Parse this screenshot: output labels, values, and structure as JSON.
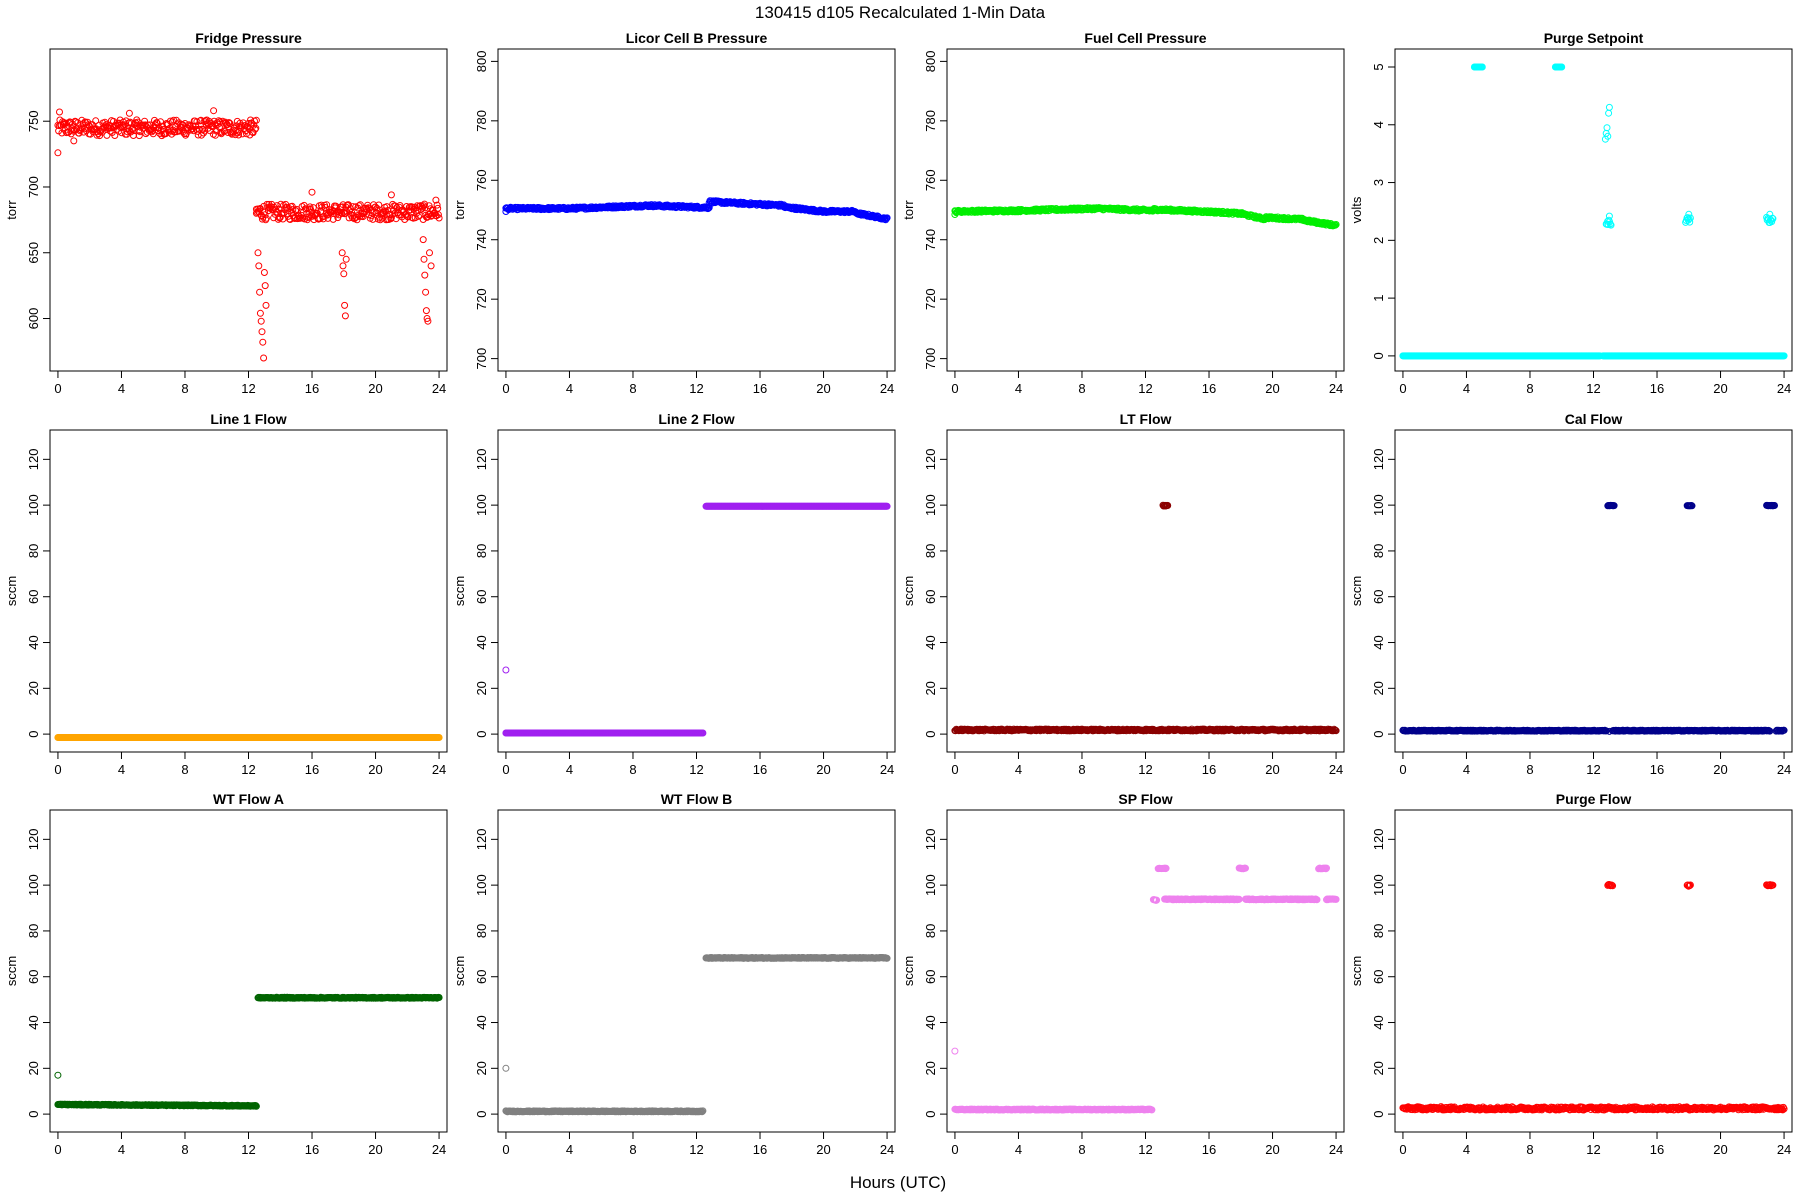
{
  "figure": {
    "title": "130415   d105   Recalculated 1-Min Data",
    "xlabel": "Hours (UTC)"
  },
  "chart_data": [
    {
      "type": "scatter",
      "title": "Fridge Pressure",
      "ylabel": "torr",
      "color": "#ff0000",
      "xlim": [
        0,
        24
      ],
      "ylim": [
        565,
        800
      ],
      "xticks": [
        0,
        4,
        8,
        12,
        16,
        20,
        24
      ],
      "yticks": [
        600,
        650,
        700,
        750
      ],
      "segments": [
        {
          "x": [
            0,
            12.5
          ],
          "y": 745,
          "jitter": 6
        },
        {
          "x": [
            12.5,
            24
          ],
          "y": 681,
          "jitter": 6
        }
      ],
      "points": [
        [
          0.0,
          726
        ],
        [
          0.1,
          757
        ],
        [
          1.0,
          735
        ],
        [
          4.5,
          756
        ],
        [
          9.8,
          758
        ],
        [
          12.5,
          680
        ],
        [
          12.6,
          650
        ],
        [
          12.65,
          640
        ],
        [
          12.7,
          620
        ],
        [
          12.75,
          604
        ],
        [
          12.8,
          598
        ],
        [
          12.85,
          590
        ],
        [
          12.9,
          582
        ],
        [
          12.95,
          570
        ],
        [
          13.0,
          635
        ],
        [
          13.05,
          625
        ],
        [
          13.1,
          610
        ],
        [
          16.0,
          696
        ],
        [
          17.9,
          650
        ],
        [
          17.95,
          640
        ],
        [
          18.0,
          634
        ],
        [
          18.05,
          610
        ],
        [
          18.1,
          602
        ],
        [
          18.15,
          645
        ],
        [
          21.0,
          694
        ],
        [
          23.0,
          660
        ],
        [
          23.05,
          645
        ],
        [
          23.1,
          633
        ],
        [
          23.15,
          620
        ],
        [
          23.2,
          606
        ],
        [
          23.25,
          600
        ],
        [
          23.3,
          598
        ],
        [
          23.4,
          650
        ],
        [
          23.5,
          640
        ],
        [
          23.8,
          690
        ]
      ]
    },
    {
      "type": "scatter",
      "title": "Licor Cell B Pressure",
      "ylabel": "torr",
      "color": "#0000ff",
      "xlim": [
        0,
        24
      ],
      "ylim": [
        698,
        802
      ],
      "xticks": [
        0,
        4,
        8,
        12,
        16,
        20,
        24
      ],
      "yticks": [
        700,
        720,
        740,
        760,
        780,
        800
      ],
      "segments": [
        {
          "x": [
            0,
            4
          ],
          "y": [
            750.5,
            750.5
          ],
          "jitter": 0.4
        },
        {
          "x": [
            4,
            9
          ],
          "y": [
            750.5,
            751.5
          ],
          "jitter": 0.4
        },
        {
          "x": [
            9,
            12.8
          ],
          "y": [
            751.5,
            750.8
          ],
          "jitter": 0.4
        },
        {
          "x": [
            12.8,
            17.5
          ],
          "y": [
            752.8,
            751.5
          ],
          "jitter": 0.4
        },
        {
          "x": [
            17.5,
            20
          ],
          "y": [
            751,
            749.5
          ],
          "jitter": 0.4
        },
        {
          "x": [
            20,
            22
          ],
          "y": [
            749.5,
            749.5
          ],
          "jitter": 0.4
        },
        {
          "x": [
            22,
            24
          ],
          "y": [
            749,
            747
          ],
          "jitter": 0.4
        }
      ],
      "points": [
        [
          0.0,
          749.5
        ]
      ]
    },
    {
      "type": "scatter",
      "title": "Fuel Cell Pressure",
      "ylabel": "torr",
      "color": "#00ee00",
      "xlim": [
        0,
        24
      ],
      "ylim": [
        698,
        802
      ],
      "xticks": [
        0,
        4,
        8,
        12,
        16,
        20,
        24
      ],
      "yticks": [
        700,
        720,
        740,
        760,
        780,
        800
      ],
      "segments": [
        {
          "x": [
            0,
            4
          ],
          "y": [
            749.5,
            749.8
          ],
          "jitter": 0.4
        },
        {
          "x": [
            4,
            9
          ],
          "y": [
            749.8,
            750.5
          ],
          "jitter": 0.4
        },
        {
          "x": [
            9,
            12.5
          ],
          "y": [
            750.5,
            749.8
          ],
          "jitter": 0.4
        },
        {
          "x": [
            12.5,
            16.5
          ],
          "y": [
            750.2,
            749.3
          ],
          "jitter": 0.4
        },
        {
          "x": [
            16.5,
            18.2
          ],
          "y": [
            749.3,
            748.7
          ],
          "jitter": 0.4
        },
        {
          "x": [
            18.2,
            19.5
          ],
          "y": [
            748.5,
            747
          ],
          "jitter": 0.4
        },
        {
          "x": [
            19.5,
            22
          ],
          "y": [
            747.5,
            746.8
          ],
          "jitter": 0.4
        },
        {
          "x": [
            22,
            24
          ],
          "y": [
            746.5,
            744.8
          ],
          "jitter": 0.4
        }
      ],
      "points": [
        [
          0.0,
          748.5
        ]
      ]
    },
    {
      "type": "scatter",
      "title": "Purge Setpoint",
      "ylabel": "volts",
      "color": "#00ffff",
      "xlim": [
        0,
        24
      ],
      "ylim": [
        -0.15,
        5.2
      ],
      "xticks": [
        0,
        4,
        8,
        12,
        16,
        20,
        24
      ],
      "yticks": [
        0,
        1,
        2,
        3,
        4,
        5
      ],
      "segments": [
        {
          "x": [
            0,
            12.4
          ],
          "y": 0,
          "jitter": 0
        },
        {
          "x": [
            12.6,
            24
          ],
          "y": 0,
          "jitter": 0
        },
        {
          "x": [
            4.5,
            5.0
          ],
          "y": 5,
          "jitter": 0
        },
        {
          "x": [
            9.6,
            10.0
          ],
          "y": 5,
          "jitter": 0
        },
        {
          "x": [
            12.8,
            13.1
          ],
          "y": 2.3,
          "jitter": 0.05
        },
        {
          "x": [
            17.8,
            18.1
          ],
          "y": 2.35,
          "jitter": 0.05
        },
        {
          "x": [
            22.9,
            23.3
          ],
          "y": 2.35,
          "jitter": 0.05
        }
      ],
      "points": [
        [
          12.75,
          3.75
        ],
        [
          12.8,
          3.85
        ],
        [
          12.85,
          3.95
        ],
        [
          12.95,
          4.2
        ],
        [
          13.0,
          4.3
        ],
        [
          12.9,
          3.8
        ],
        [
          13.0,
          2.42
        ],
        [
          18.0,
          2.45
        ],
        [
          23.1,
          2.45
        ]
      ]
    },
    {
      "type": "scatter",
      "title": "Line 1 Flow",
      "ylabel": "sccm",
      "color": "#ffa500",
      "xlim": [
        0,
        24
      ],
      "ylim": [
        -5,
        130
      ],
      "xticks": [
        0,
        4,
        8,
        12,
        16,
        20,
        24
      ],
      "yticks": [
        0,
        20,
        40,
        60,
        80,
        100,
        120
      ],
      "segments": [
        {
          "x": [
            0,
            24
          ],
          "y": -1.5,
          "jitter": 0
        }
      ],
      "points": []
    },
    {
      "type": "scatter",
      "title": "Line 2 Flow",
      "ylabel": "sccm",
      "color": "#a020f0",
      "xlim": [
        0,
        24
      ],
      "ylim": [
        -5,
        130
      ],
      "xticks": [
        0,
        4,
        8,
        12,
        16,
        20,
        24
      ],
      "yticks": [
        0,
        20,
        40,
        60,
        80,
        100,
        120
      ],
      "segments": [
        {
          "x": [
            0,
            12.4
          ],
          "y": 0.5,
          "jitter": 0
        },
        {
          "x": [
            12.6,
            24
          ],
          "y": 99.5,
          "jitter": 0
        }
      ],
      "points": [
        [
          0.0,
          28
        ]
      ]
    },
    {
      "type": "scatter",
      "title": "LT Flow",
      "ylabel": "sccm",
      "color": "#8b0000",
      "xlim": [
        0,
        24
      ],
      "ylim": [
        -5,
        130
      ],
      "xticks": [
        0,
        4,
        8,
        12,
        16,
        20,
        24
      ],
      "yticks": [
        0,
        20,
        40,
        60,
        80,
        100,
        120
      ],
      "segments": [
        {
          "x": [
            0,
            24
          ],
          "y": 1.8,
          "jitter": 0.4
        },
        {
          "x": [
            13.1,
            13.4
          ],
          "y": 99.8,
          "jitter": 0.2
        }
      ],
      "points": []
    },
    {
      "type": "scatter",
      "title": "Cal Flow",
      "ylabel": "sccm",
      "color": "#00008b",
      "xlim": [
        0,
        24
      ],
      "ylim": [
        -5,
        130
      ],
      "xticks": [
        0,
        4,
        8,
        12,
        16,
        20,
        24
      ],
      "yticks": [
        0,
        20,
        40,
        60,
        80,
        100,
        120
      ],
      "segments": [
        {
          "x": [
            0,
            12.8
          ],
          "y": 1.5,
          "jitter": 0.2
        },
        {
          "x": [
            13.2,
            23.1
          ],
          "y": 1.5,
          "jitter": 0.2
        },
        {
          "x": [
            23.5,
            24
          ],
          "y": 1.5,
          "jitter": 0.2
        },
        {
          "x": [
            12.9,
            13.3
          ],
          "y": 99.8,
          "jitter": 0.1
        },
        {
          "x": [
            17.9,
            18.2
          ],
          "y": 99.8,
          "jitter": 0.1
        },
        {
          "x": [
            22.9,
            23.4
          ],
          "y": 99.8,
          "jitter": 0.1
        }
      ],
      "points": [
        [
          13.0,
          1.2
        ]
      ]
    },
    {
      "type": "scatter",
      "title": "WT Flow A",
      "ylabel": "sccm",
      "color": "#006400",
      "xlim": [
        0,
        24
      ],
      "ylim": [
        -5,
        130
      ],
      "xticks": [
        0,
        4,
        8,
        12,
        16,
        20,
        24
      ],
      "yticks": [
        0,
        20,
        40,
        60,
        80,
        100,
        120
      ],
      "segments": [
        {
          "x": [
            0,
            12.5
          ],
          "y": [
            4.2,
            3.6
          ],
          "jitter": 0.2
        },
        {
          "x": [
            12.6,
            24
          ],
          "y": 50.8,
          "jitter": 0.2
        }
      ],
      "points": [
        [
          0.0,
          17
        ]
      ]
    },
    {
      "type": "scatter",
      "title": "WT Flow B",
      "ylabel": "sccm",
      "color": "#808080",
      "xlim": [
        0,
        24
      ],
      "ylim": [
        -5,
        130
      ],
      "xticks": [
        0,
        4,
        8,
        12,
        16,
        20,
        24
      ],
      "yticks": [
        0,
        20,
        40,
        60,
        80,
        100,
        120
      ],
      "segments": [
        {
          "x": [
            0,
            12.4
          ],
          "y": 1.2,
          "jitter": 0.2
        },
        {
          "x": [
            12.6,
            24
          ],
          "y": 68.2,
          "jitter": 0.2
        }
      ],
      "points": [
        [
          0.0,
          20
        ]
      ]
    },
    {
      "type": "scatter",
      "title": "SP Flow",
      "ylabel": "sccm",
      "color": "#ee82ee",
      "xlim": [
        0,
        24
      ],
      "ylim": [
        -5,
        130
      ],
      "xticks": [
        0,
        4,
        8,
        12,
        16,
        20,
        24
      ],
      "yticks": [
        0,
        20,
        40,
        60,
        80,
        100,
        120
      ],
      "segments": [
        {
          "x": [
            0,
            12.4
          ],
          "y": 2,
          "jitter": 0.2
        },
        {
          "x": [
            12.5,
            12.7
          ],
          "y": 93.5,
          "jitter": 0.2
        },
        {
          "x": [
            13.2,
            17.9
          ],
          "y": 93.8,
          "jitter": 0.2
        },
        {
          "x": [
            18.3,
            22.8
          ],
          "y": 93.8,
          "jitter": 0.2
        },
        {
          "x": [
            23.4,
            24
          ],
          "y": 93.8,
          "jitter": 0.2
        },
        {
          "x": [
            12.8,
            13.3
          ],
          "y": 107.3,
          "jitter": 0.2
        },
        {
          "x": [
            17.9,
            18.3
          ],
          "y": 107.3,
          "jitter": 0.2
        },
        {
          "x": [
            22.9,
            23.4
          ],
          "y": 107.3,
          "jitter": 0.2
        }
      ],
      "points": [
        [
          0.0,
          27.5
        ]
      ]
    },
    {
      "type": "scatter",
      "title": "Purge Flow",
      "ylabel": "sccm",
      "color": "#ff0000",
      "xlim": [
        0,
        24
      ],
      "ylim": [
        -5,
        130
      ],
      "xticks": [
        0,
        4,
        8,
        12,
        16,
        20,
        24
      ],
      "yticks": [
        0,
        20,
        40,
        60,
        80,
        100,
        120
      ],
      "segments": [
        {
          "x": [
            0,
            24
          ],
          "y": 2.5,
          "jitter": 0.7
        },
        {
          "x": [
            12.9,
            13.2
          ],
          "y": 100,
          "jitter": 0.3
        },
        {
          "x": [
            17.9,
            18.1
          ],
          "y": 99.8,
          "jitter": 0.3
        },
        {
          "x": [
            22.9,
            23.3
          ],
          "y": 100,
          "jitter": 0.3
        }
      ],
      "points": []
    }
  ]
}
